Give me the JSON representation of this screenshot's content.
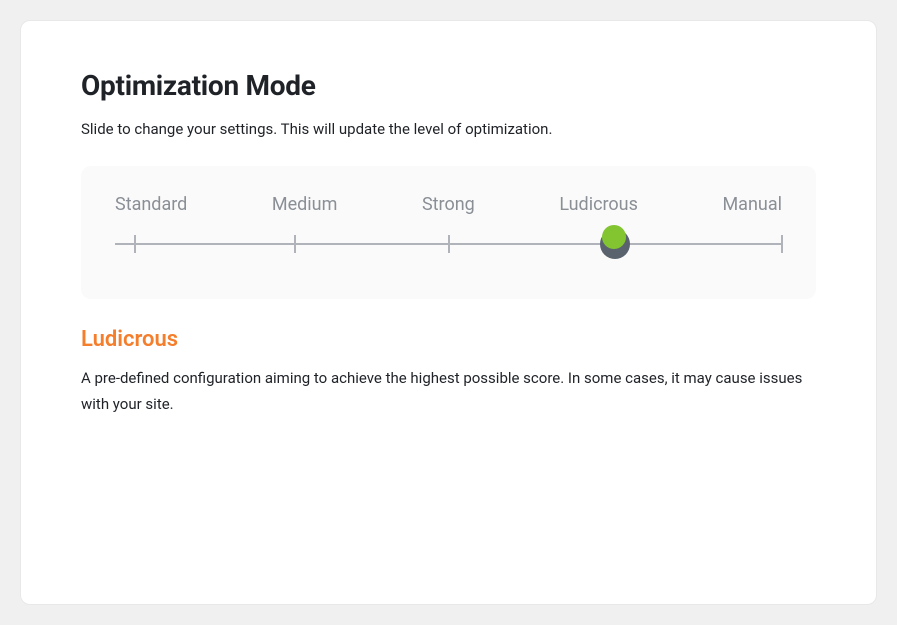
{
  "card": {
    "title": "Optimization Mode",
    "subtitle": "Slide to change your settings. This will update the level of optimization."
  },
  "slider": {
    "track_color": "#b0b4ba",
    "background_color": "#fafafa",
    "handle_color": "#5a636d",
    "handle_glow_color": "#82c531",
    "labels": [
      "Standard",
      "Medium",
      "Strong",
      "Ludicrous",
      "Manual"
    ],
    "tick_positions_pct": [
      3,
      27,
      50,
      75,
      100
    ],
    "selected_index": 3
  },
  "selected": {
    "title": "Ludicrous",
    "title_color": "#f47e2b",
    "description": "A pre-defined configuration aiming to achieve the highest possible score. In some cases, it may cause issues with your site."
  }
}
